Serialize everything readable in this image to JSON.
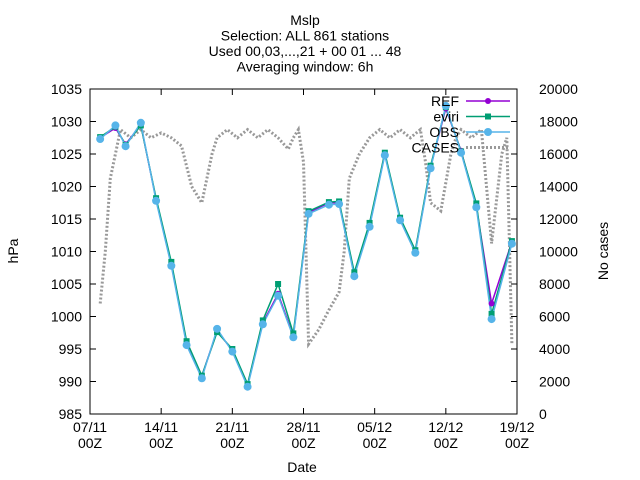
{
  "chart_data": {
    "type": "line",
    "title_lines": [
      "Mslp",
      "Selection: ALL     861 stations",
      "Used 00,03,...,21 + 00 01 ... 48",
      "Averaging window:  6h"
    ],
    "xlabel": "Date",
    "ylabel": "hPa",
    "y2label": "No cases",
    "x_ticks": [
      {
        "date": "2022-11-07",
        "line1": "07/11",
        "line2": "00Z"
      },
      {
        "date": "2022-11-14",
        "line1": "14/11",
        "line2": "00Z"
      },
      {
        "date": "2022-11-21",
        "line1": "21/11",
        "line2": "00Z"
      },
      {
        "date": "2022-11-28",
        "line1": "28/11",
        "line2": "00Z"
      },
      {
        "date": "2022-12-05",
        "line1": "05/12",
        "line2": "00Z"
      },
      {
        "date": "2022-12-12",
        "line1": "12/12",
        "line2": "00Z"
      },
      {
        "date": "2022-12-19",
        "line1": "19/12",
        "line2": "00Z"
      }
    ],
    "xlim": [
      "2022-11-07 00:00",
      "2022-12-19 00:00"
    ],
    "ylim": [
      985,
      1035
    ],
    "y_ticks": [
      985,
      990,
      995,
      1000,
      1005,
      1010,
      1015,
      1020,
      1025,
      1030,
      1035
    ],
    "y2lim": [
      0,
      20000
    ],
    "y2_ticks": [
      0,
      2000,
      4000,
      6000,
      8000,
      10000,
      12000,
      14000,
      16000,
      18000,
      20000
    ],
    "grid": false,
    "legend_position": "top-right",
    "series": [
      {
        "name": "REF",
        "color": "#9400d3",
        "axis": "left",
        "style": "line+filled-circle",
        "x": [
          "2022-11-08 00:00",
          "2022-11-09 12:00",
          "2022-11-10 12:00",
          "2022-11-12 00:00",
          "2022-11-13 12:00",
          "2022-11-15 00:00",
          "2022-11-16 12:00",
          "2022-11-18 00:00",
          "2022-11-19 12:00",
          "2022-11-21 00:00",
          "2022-11-22 12:00",
          "2022-11-24 00:00",
          "2022-11-25 12:00",
          "2022-11-27 00:00",
          "2022-11-28 12:00",
          "2022-11-30 12:00",
          "2022-12-01 12:00",
          "2022-12-03 00:00",
          "2022-12-04 12:00",
          "2022-12-06 00:00",
          "2022-12-07 12:00",
          "2022-12-09 00:00",
          "2022-12-10 12:00",
          "2022-12-12 00:00",
          "2022-12-13 12:00",
          "2022-12-15 00:00",
          "2022-12-16 12:00",
          "2022-12-18 12:00"
        ],
        "values": [
          1027.5,
          1029,
          1026.5,
          1029.5,
          1018,
          1008,
          996,
          990.8,
          997.8,
          994.8,
          989.5,
          999,
          1003.5,
          997,
          1016,
          1017.5,
          1017.5,
          1006.5,
          1014,
          1025,
          1015,
          1010,
          1023,
          1032,
          1025.5,
          1017,
          1002,
          1011.5
        ]
      },
      {
        "name": "eviri",
        "color": "#009e73",
        "axis": "left",
        "style": "line+filled-square",
        "x": [
          "2022-11-08 00:00",
          "2022-11-09 12:00",
          "2022-11-10 12:00",
          "2022-11-12 00:00",
          "2022-11-13 12:00",
          "2022-11-15 00:00",
          "2022-11-16 12:00",
          "2022-11-18 00:00",
          "2022-11-19 12:00",
          "2022-11-21 00:00",
          "2022-11-22 12:00",
          "2022-11-24 00:00",
          "2022-11-25 12:00",
          "2022-11-27 00:00",
          "2022-11-28 12:00",
          "2022-11-30 12:00",
          "2022-12-01 12:00",
          "2022-12-03 00:00",
          "2022-12-04 12:00",
          "2022-12-06 00:00",
          "2022-12-07 12:00",
          "2022-12-09 00:00",
          "2022-12-10 12:00",
          "2022-12-12 00:00",
          "2022-12-13 12:00",
          "2022-12-15 00:00",
          "2022-12-16 12:00",
          "2022-12-18 12:00"
        ],
        "values": [
          1027.6,
          1029.2,
          1026.4,
          1029.4,
          1018.2,
          1008.4,
          996.2,
          990.9,
          997.6,
          995,
          989.6,
          999.4,
          1005,
          997.4,
          1016.2,
          1017.6,
          1017.7,
          1006.8,
          1014.4,
          1025.2,
          1015.2,
          1010.2,
          1023.2,
          1032.2,
          1025.4,
          1017.4,
          1000.4,
          1011.6
        ]
      },
      {
        "name": "OBS",
        "color": "#56b4e9",
        "axis": "left",
        "style": "line+filled-circle",
        "x": [
          "2022-11-08 00:00",
          "2022-11-09 12:00",
          "2022-11-10 12:00",
          "2022-11-12 00:00",
          "2022-11-13 12:00",
          "2022-11-15 00:00",
          "2022-11-16 12:00",
          "2022-11-18 00:00",
          "2022-11-19 12:00",
          "2022-11-21 00:00",
          "2022-11-22 12:00",
          "2022-11-24 00:00",
          "2022-11-25 12:00",
          "2022-11-27 00:00",
          "2022-11-28 12:00",
          "2022-11-30 12:00",
          "2022-12-01 12:00",
          "2022-12-03 00:00",
          "2022-12-04 12:00",
          "2022-12-06 00:00",
          "2022-12-07 12:00",
          "2022-12-09 00:00",
          "2022-12-10 12:00",
          "2022-12-12 00:00",
          "2022-12-13 12:00",
          "2022-12-15 00:00",
          "2022-12-16 12:00",
          "2022-12-18 12:00"
        ],
        "values": [
          1027.3,
          1029.4,
          1026.2,
          1029.8,
          1017.8,
          1007.8,
          995.6,
          990.5,
          998.1,
          994.6,
          989.2,
          998.8,
          1003.2,
          996.8,
          1015.8,
          1017.2,
          1017.3,
          1006.2,
          1013.8,
          1024.8,
          1014.8,
          1009.8,
          1022.8,
          1032.4,
          1025.2,
          1016.8,
          999.6,
          1011.2
        ]
      },
      {
        "name": "CASES",
        "color": "#999999",
        "axis": "right",
        "style": "dotted",
        "x": [
          "2022-11-08 00:00",
          "2022-11-08 12:00",
          "2022-11-09 00:00",
          "2022-11-09 12:00",
          "2022-11-10 00:00",
          "2022-11-11 00:00",
          "2022-11-12 00:00",
          "2022-11-13 00:00",
          "2022-11-14 00:00",
          "2022-11-15 00:00",
          "2022-11-16 00:00",
          "2022-11-17 00:00",
          "2022-11-18 00:00",
          "2022-11-18 12:00",
          "2022-11-19 00:00",
          "2022-11-19 12:00",
          "2022-11-20 12:00",
          "2022-11-21 12:00",
          "2022-11-22 12:00",
          "2022-11-23 12:00",
          "2022-11-24 12:00",
          "2022-11-25 12:00",
          "2022-11-26 12:00",
          "2022-11-27 00:00",
          "2022-11-27 12:00",
          "2022-11-28 00:00",
          "2022-11-28 12:00",
          "2022-11-29 12:00",
          "2022-11-30 12:00",
          "2022-12-01 12:00",
          "2022-12-02 00:00",
          "2022-12-02 12:00",
          "2022-12-03 12:00",
          "2022-12-04 12:00",
          "2022-12-05 12:00",
          "2022-12-06 12:00",
          "2022-12-07 12:00",
          "2022-12-08 12:00",
          "2022-12-09 12:00",
          "2022-12-10 00:00",
          "2022-12-10 12:00",
          "2022-12-11 12:00",
          "2022-12-12 12:00",
          "2022-12-13 00:00",
          "2022-12-13 12:00",
          "2022-12-14 12:00",
          "2022-12-15 12:00",
          "2022-12-16 12:00",
          "2022-12-17 12:00",
          "2022-12-18 00:00",
          "2022-12-18 12:00"
        ],
        "values": [
          6800,
          10000,
          14500,
          16000,
          17500,
          17000,
          17500,
          17000,
          17300,
          17000,
          16500,
          14000,
          13000,
          14500,
          16000,
          17000,
          17500,
          17000,
          17500,
          17000,
          17500,
          17000,
          16300,
          17000,
          17500,
          15500,
          4300,
          5200,
          6400,
          7500,
          10000,
          14500,
          16000,
          17000,
          17500,
          17000,
          17500,
          17000,
          17500,
          15500,
          13000,
          12500,
          16000,
          17000,
          17500,
          17000,
          17500,
          10500,
          16000,
          17000,
          4300
        ]
      }
    ]
  }
}
